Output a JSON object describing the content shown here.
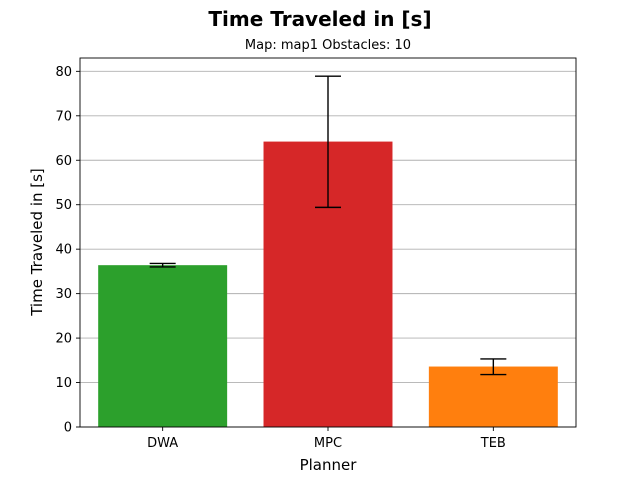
{
  "chart_data": {
    "type": "bar",
    "title": "Time Traveled in [s]",
    "subtitle": "Map: map1 Obstacles: 10",
    "xlabel": "Planner",
    "ylabel": "Time Traveled in [s]",
    "categories": [
      "DWA",
      "MPC",
      "TEB"
    ],
    "values": [
      36.4,
      64.2,
      13.6
    ],
    "error_low": [
      36.0,
      49.4,
      11.8
    ],
    "error_high": [
      36.8,
      78.9,
      15.3
    ],
    "colors": [
      "#2ca02c",
      "#d62728",
      "#ff7f0e"
    ],
    "ylim": [
      0,
      83
    ],
    "yticks": [
      0,
      10,
      20,
      30,
      40,
      50,
      60,
      70,
      80
    ],
    "grid": "horizontal"
  }
}
